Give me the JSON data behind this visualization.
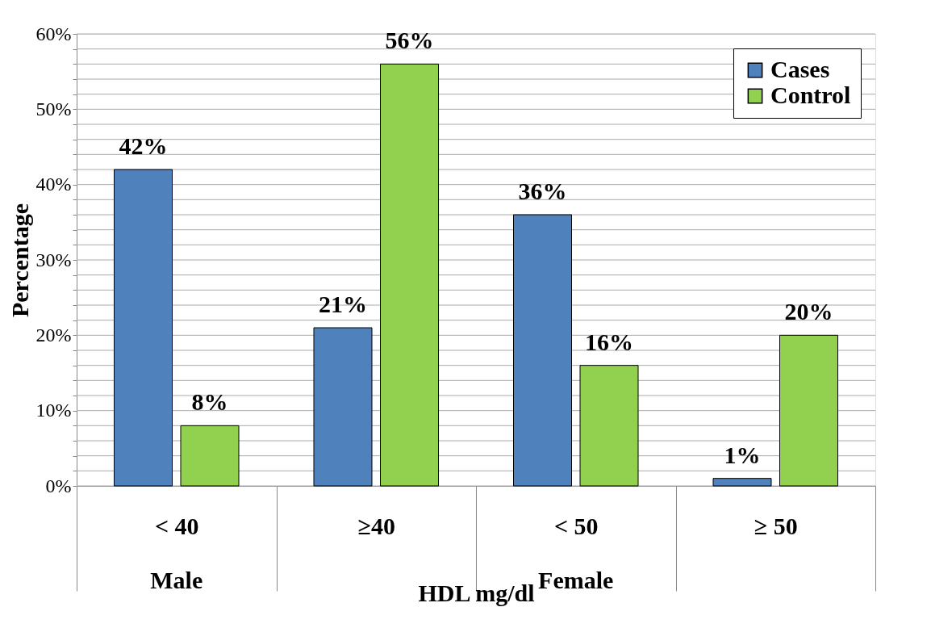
{
  "chart_data": {
    "type": "bar",
    "ylabel": "Percentage",
    "xlabel": "HDL mg/dl",
    "categories": [
      "< 40",
      "≥40",
      "< 50",
      "≥ 50"
    ],
    "series": [
      {
        "name": "Cases",
        "color": "#4f81bd",
        "values": [
          42,
          21,
          36,
          1
        ],
        "value_labels": [
          "42%",
          "21%",
          "36%",
          "1%"
        ]
      },
      {
        "name": "Control",
        "color": "#92d050",
        "values": [
          8,
          56,
          16,
          20
        ],
        "value_labels": [
          "8%",
          "56%",
          "16%",
          "20%"
        ]
      }
    ],
    "ylim": [
      0,
      60
    ],
    "yticks": [
      {
        "value": 0,
        "label": "0%"
      },
      {
        "value": 2,
        "label": null
      },
      {
        "value": 4,
        "label": null
      },
      {
        "value": 6,
        "label": null
      },
      {
        "value": 8,
        "label": null
      },
      {
        "value": 10,
        "label": "10%"
      },
      {
        "value": 12,
        "label": null
      },
      {
        "value": 14,
        "label": null
      },
      {
        "value": 16,
        "label": null
      },
      {
        "value": 18,
        "label": null
      },
      {
        "value": 20,
        "label": "20%"
      },
      {
        "value": 22,
        "label": null
      },
      {
        "value": 24,
        "label": null
      },
      {
        "value": 26,
        "label": null
      },
      {
        "value": 28,
        "label": null
      },
      {
        "value": 30,
        "label": "30%"
      },
      {
        "value": 32,
        "label": null
      },
      {
        "value": 34,
        "label": null
      },
      {
        "value": 36,
        "label": null
      },
      {
        "value": 38,
        "label": null
      },
      {
        "value": 40,
        "label": "40%"
      },
      {
        "value": 42,
        "label": null
      },
      {
        "value": 44,
        "label": null
      },
      {
        "value": 46,
        "label": null
      },
      {
        "value": 48,
        "label": null
      },
      {
        "value": 50,
        "label": "50%"
      },
      {
        "value": 52,
        "label": null
      },
      {
        "value": 54,
        "label": null
      },
      {
        "value": 56,
        "label": null
      },
      {
        "value": 58,
        "label": null
      },
      {
        "value": 60,
        "label": "60%"
      }
    ],
    "grid": "y",
    "legend": "top right",
    "annotations": [
      "Male",
      "Female"
    ]
  }
}
